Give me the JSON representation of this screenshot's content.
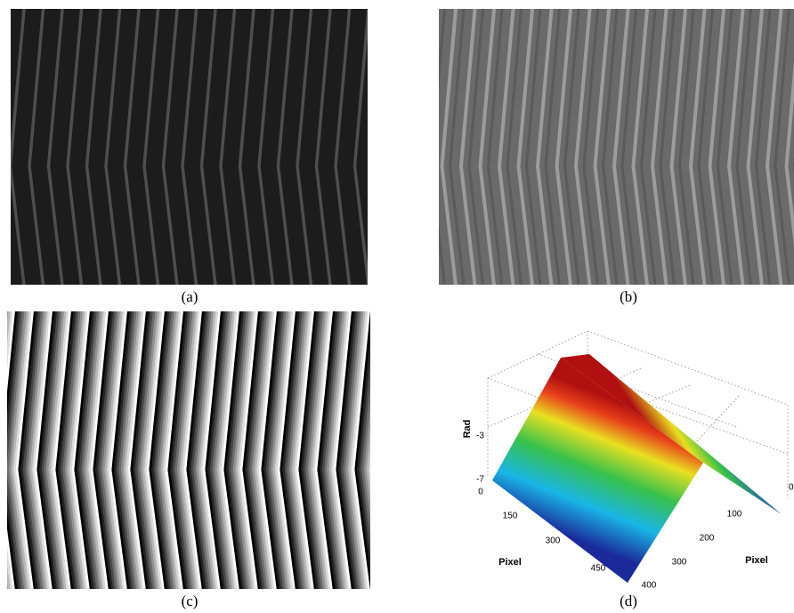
{
  "panels": [
    {
      "caption": "(a)"
    },
    {
      "caption": "(b)"
    },
    {
      "caption": "(c)"
    },
    {
      "caption": "(d)",
      "axes": {
        "z_label": "Rad",
        "z_ticks": [
          -3,
          -7
        ],
        "x_label": "Pixel",
        "x_ticks": [
          0,
          150,
          300,
          450
        ],
        "y_label": "Pixel",
        "y_ticks": [
          0,
          100,
          200,
          300,
          400
        ]
      }
    }
  ]
}
